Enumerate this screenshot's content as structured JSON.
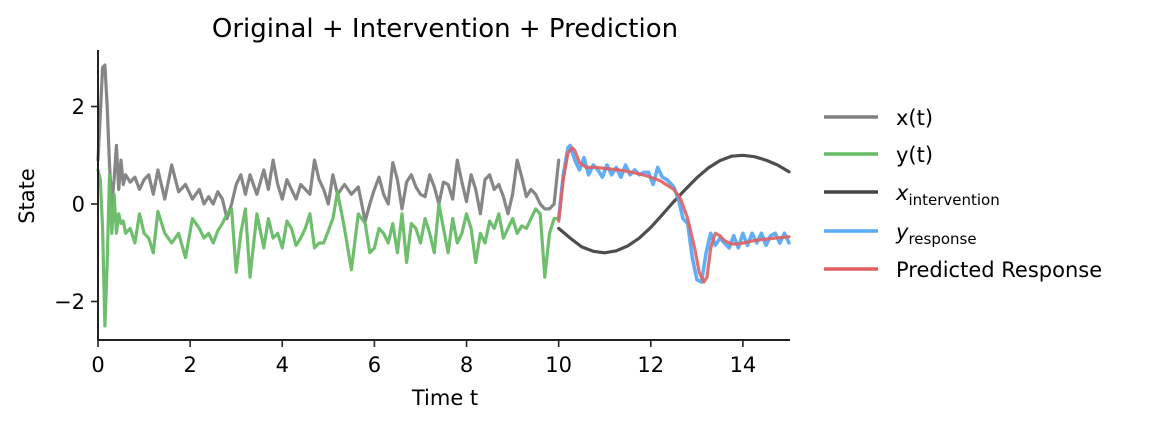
{
  "chart_data": {
    "type": "line",
    "title": "Original + Intervention + Prediction",
    "xlabel": "Time t",
    "ylabel": "State",
    "xlim": [
      0,
      15
    ],
    "ylim": [
      -2.8,
      3.15
    ],
    "xticks": [
      0,
      2,
      4,
      6,
      8,
      10,
      12,
      14
    ],
    "xtick_labels": [
      "0",
      "2",
      "4",
      "6",
      "8",
      "10",
      "12",
      "14"
    ],
    "yticks": [
      -2,
      0,
      2
    ],
    "ytick_labels": [
      "−2",
      "0",
      "2"
    ],
    "grid": false,
    "legend_position": "outside right",
    "series": [
      {
        "name": "x(t)",
        "label_main": "x(t)",
        "label_sub": "",
        "italic": false,
        "color": "#808080",
        "x": [
          0,
          0.1,
          0.15,
          0.2,
          0.25,
          0.3,
          0.35,
          0.4,
          0.45,
          0.5,
          0.55,
          0.6,
          0.7,
          0.8,
          0.9,
          1.0,
          1.1,
          1.2,
          1.3,
          1.45,
          1.6,
          1.75,
          1.9,
          2.05,
          2.2,
          2.3,
          2.4,
          2.5,
          2.6,
          2.7,
          2.8,
          2.9,
          3.0,
          3.1,
          3.2,
          3.3,
          3.45,
          3.6,
          3.7,
          3.8,
          3.9,
          4.0,
          4.1,
          4.2,
          4.3,
          4.4,
          4.5,
          4.6,
          4.7,
          4.8,
          4.9,
          5.0,
          5.1,
          5.2,
          5.35,
          5.5,
          5.65,
          5.8,
          5.9,
          6.0,
          6.1,
          6.2,
          6.3,
          6.4,
          6.5,
          6.6,
          6.7,
          6.8,
          6.9,
          7.0,
          7.1,
          7.2,
          7.3,
          7.4,
          7.5,
          7.6,
          7.7,
          7.8,
          7.9,
          8.0,
          8.1,
          8.2,
          8.3,
          8.4,
          8.5,
          8.6,
          8.7,
          8.8,
          8.9,
          9.0,
          9.1,
          9.2,
          9.3,
          9.4,
          9.5,
          9.6,
          9.7,
          9.8,
          9.9,
          10.0
        ],
        "y": [
          0.9,
          2.8,
          2.85,
          2.0,
          0.8,
          0.0,
          0.5,
          1.2,
          0.3,
          0.9,
          0.4,
          0.6,
          0.45,
          0.55,
          0.3,
          0.5,
          0.6,
          0.2,
          0.7,
          0.1,
          0.8,
          0.25,
          0.4,
          0.1,
          0.3,
          0.0,
          0.15,
          0.0,
          0.25,
          0.1,
          -0.3,
          0.0,
          0.4,
          0.6,
          0.2,
          0.6,
          0.2,
          0.7,
          0.3,
          0.9,
          0.4,
          0.1,
          0.5,
          0.3,
          0.1,
          0.4,
          0.3,
          0.2,
          0.9,
          0.5,
          0.3,
          0.0,
          0.6,
          0.2,
          0.4,
          0.2,
          0.35,
          -0.35,
          0.0,
          0.3,
          0.55,
          0.2,
          0.0,
          0.85,
          0.5,
          -0.1,
          0.45,
          0.6,
          0.35,
          0.2,
          0.15,
          0.6,
          0.35,
          0.0,
          0.45,
          0.4,
          0.1,
          0.9,
          0.45,
          0.05,
          0.6,
          0.3,
          -0.2,
          0.5,
          0.6,
          0.3,
          0.4,
          0.15,
          -0.2,
          0.2,
          0.9,
          0.55,
          0.15,
          0.3,
          0.2,
          0.0,
          -0.1,
          -0.1,
          0.0,
          0.9
        ]
      },
      {
        "name": "y(t)",
        "label_main": "y(t)",
        "label_sub": "",
        "italic": false,
        "color": "#66bb66",
        "x": [
          0,
          0.05,
          0.1,
          0.15,
          0.2,
          0.25,
          0.3,
          0.35,
          0.4,
          0.45,
          0.5,
          0.55,
          0.6,
          0.7,
          0.8,
          0.9,
          1.0,
          1.1,
          1.2,
          1.3,
          1.45,
          1.6,
          1.75,
          1.9,
          2.05,
          2.2,
          2.3,
          2.4,
          2.5,
          2.6,
          2.7,
          2.8,
          2.9,
          3.0,
          3.1,
          3.2,
          3.3,
          3.45,
          3.6,
          3.7,
          3.8,
          3.9,
          4.0,
          4.1,
          4.2,
          4.3,
          4.4,
          4.5,
          4.6,
          4.7,
          4.8,
          4.9,
          5.0,
          5.1,
          5.2,
          5.35,
          5.5,
          5.65,
          5.8,
          5.9,
          6.0,
          6.1,
          6.2,
          6.3,
          6.4,
          6.5,
          6.6,
          6.7,
          6.8,
          6.9,
          7.0,
          7.1,
          7.2,
          7.3,
          7.4,
          7.5,
          7.6,
          7.7,
          7.8,
          7.9,
          8.0,
          8.1,
          8.2,
          8.3,
          8.4,
          8.5,
          8.6,
          8.7,
          8.8,
          8.9,
          9.0,
          9.1,
          9.2,
          9.3,
          9.4,
          9.5,
          9.6,
          9.7,
          9.8,
          9.9,
          10.0
        ],
        "y": [
          0.7,
          0.5,
          -0.5,
          -2.5,
          -1.2,
          0.6,
          -0.6,
          0.2,
          -0.6,
          -0.2,
          -0.4,
          -0.35,
          -0.6,
          -0.5,
          -0.8,
          -0.2,
          -0.6,
          -0.7,
          -1.0,
          -0.15,
          -0.6,
          -0.8,
          -0.6,
          -1.1,
          -0.3,
          -0.5,
          -0.7,
          -0.6,
          -0.8,
          -0.55,
          -0.4,
          -0.2,
          -0.1,
          -1.4,
          -0.6,
          -0.1,
          -1.5,
          -0.2,
          -0.9,
          -0.3,
          -0.7,
          -0.6,
          -0.9,
          -0.35,
          -0.5,
          -0.85,
          -0.7,
          -0.5,
          -0.2,
          -0.9,
          -0.8,
          -0.8,
          -0.55,
          -0.3,
          0.25,
          -0.5,
          -1.35,
          -0.2,
          -0.4,
          -1.0,
          -0.9,
          -0.5,
          -0.6,
          -0.8,
          -0.4,
          -1.0,
          -0.2,
          -1.2,
          -0.4,
          -0.5,
          -0.8,
          -0.3,
          -0.6,
          -1.0,
          0.0,
          -0.5,
          -1.0,
          -0.3,
          -0.8,
          -0.6,
          -0.2,
          -0.5,
          -1.2,
          -0.6,
          -0.8,
          -0.35,
          -0.5,
          -0.2,
          -0.7,
          -0.5,
          -0.3,
          -0.6,
          -0.45,
          -0.5,
          -0.3,
          -0.1,
          -0.2,
          -1.5,
          -0.6,
          -0.3,
          -0.3
        ]
      },
      {
        "name": "x_intervention",
        "label_main": "x",
        "label_sub": "intervention",
        "italic": true,
        "color": "#444444",
        "x": [
          10.0,
          10.25,
          10.5,
          10.75,
          11.0,
          11.25,
          11.5,
          11.75,
          12.0,
          12.25,
          12.5,
          12.75,
          13.0,
          13.25,
          13.5,
          13.75,
          14.0,
          14.25,
          14.5,
          14.75,
          15.0
        ],
        "y": [
          -0.5,
          -0.7,
          -0.88,
          -0.97,
          -1.0,
          -0.96,
          -0.86,
          -0.7,
          -0.48,
          -0.22,
          0.05,
          0.3,
          0.54,
          0.74,
          0.89,
          0.98,
          1.0,
          0.97,
          0.9,
          0.8,
          0.66
        ]
      },
      {
        "name": "y_response",
        "label_main": "y",
        "label_sub": "response",
        "italic": true,
        "color": "#5aaaf5",
        "x": [
          10.0,
          10.1,
          10.2,
          10.25,
          10.35,
          10.45,
          10.55,
          10.65,
          10.75,
          10.85,
          10.95,
          11.05,
          11.15,
          11.25,
          11.35,
          11.45,
          11.55,
          11.65,
          11.75,
          11.85,
          11.95,
          12.05,
          12.15,
          12.25,
          12.35,
          12.5,
          12.6,
          12.7,
          12.8,
          12.9,
          13.0,
          13.1,
          13.2,
          13.3,
          13.4,
          13.5,
          13.6,
          13.7,
          13.8,
          13.9,
          14.0,
          14.1,
          14.2,
          14.3,
          14.4,
          14.5,
          14.6,
          14.7,
          14.8,
          14.9,
          15.0
        ],
        "y": [
          -0.3,
          0.6,
          1.15,
          1.2,
          0.9,
          0.7,
          0.95,
          0.6,
          0.8,
          0.7,
          0.55,
          0.8,
          0.6,
          0.75,
          0.55,
          0.8,
          0.6,
          0.7,
          0.6,
          0.65,
          0.65,
          0.4,
          0.75,
          0.55,
          0.5,
          0.35,
          0.1,
          -0.3,
          -0.4,
          -1.1,
          -1.55,
          -1.6,
          -1.0,
          -0.6,
          -0.85,
          -0.7,
          -0.8,
          -0.9,
          -0.65,
          -0.9,
          -0.6,
          -0.85,
          -0.6,
          -0.8,
          -0.6,
          -0.85,
          -0.65,
          -0.6,
          -0.8,
          -0.6,
          -0.8
        ]
      },
      {
        "name": "Predicted Response",
        "label_main": "Predicted Response",
        "label_sub": "",
        "italic": false,
        "color": "#e06060",
        "x": [
          10.0,
          10.1,
          10.2,
          10.3,
          10.35,
          10.45,
          10.6,
          10.8,
          11.0,
          11.3,
          11.6,
          11.9,
          12.2,
          12.5,
          12.65,
          12.8,
          12.95,
          13.05,
          13.15,
          13.22,
          13.3,
          13.4,
          13.5,
          13.6,
          13.75,
          13.9,
          14.1,
          14.3,
          14.5,
          14.7,
          15.0
        ],
        "y": [
          -0.35,
          0.5,
          1.05,
          1.15,
          1.1,
          0.85,
          0.75,
          0.75,
          0.73,
          0.7,
          0.65,
          0.58,
          0.48,
          0.3,
          0.1,
          -0.3,
          -0.9,
          -1.4,
          -1.6,
          -1.5,
          -0.9,
          -0.6,
          -0.65,
          -0.75,
          -0.82,
          -0.82,
          -0.78,
          -0.74,
          -0.72,
          -0.7,
          -0.67
        ]
      }
    ]
  }
}
